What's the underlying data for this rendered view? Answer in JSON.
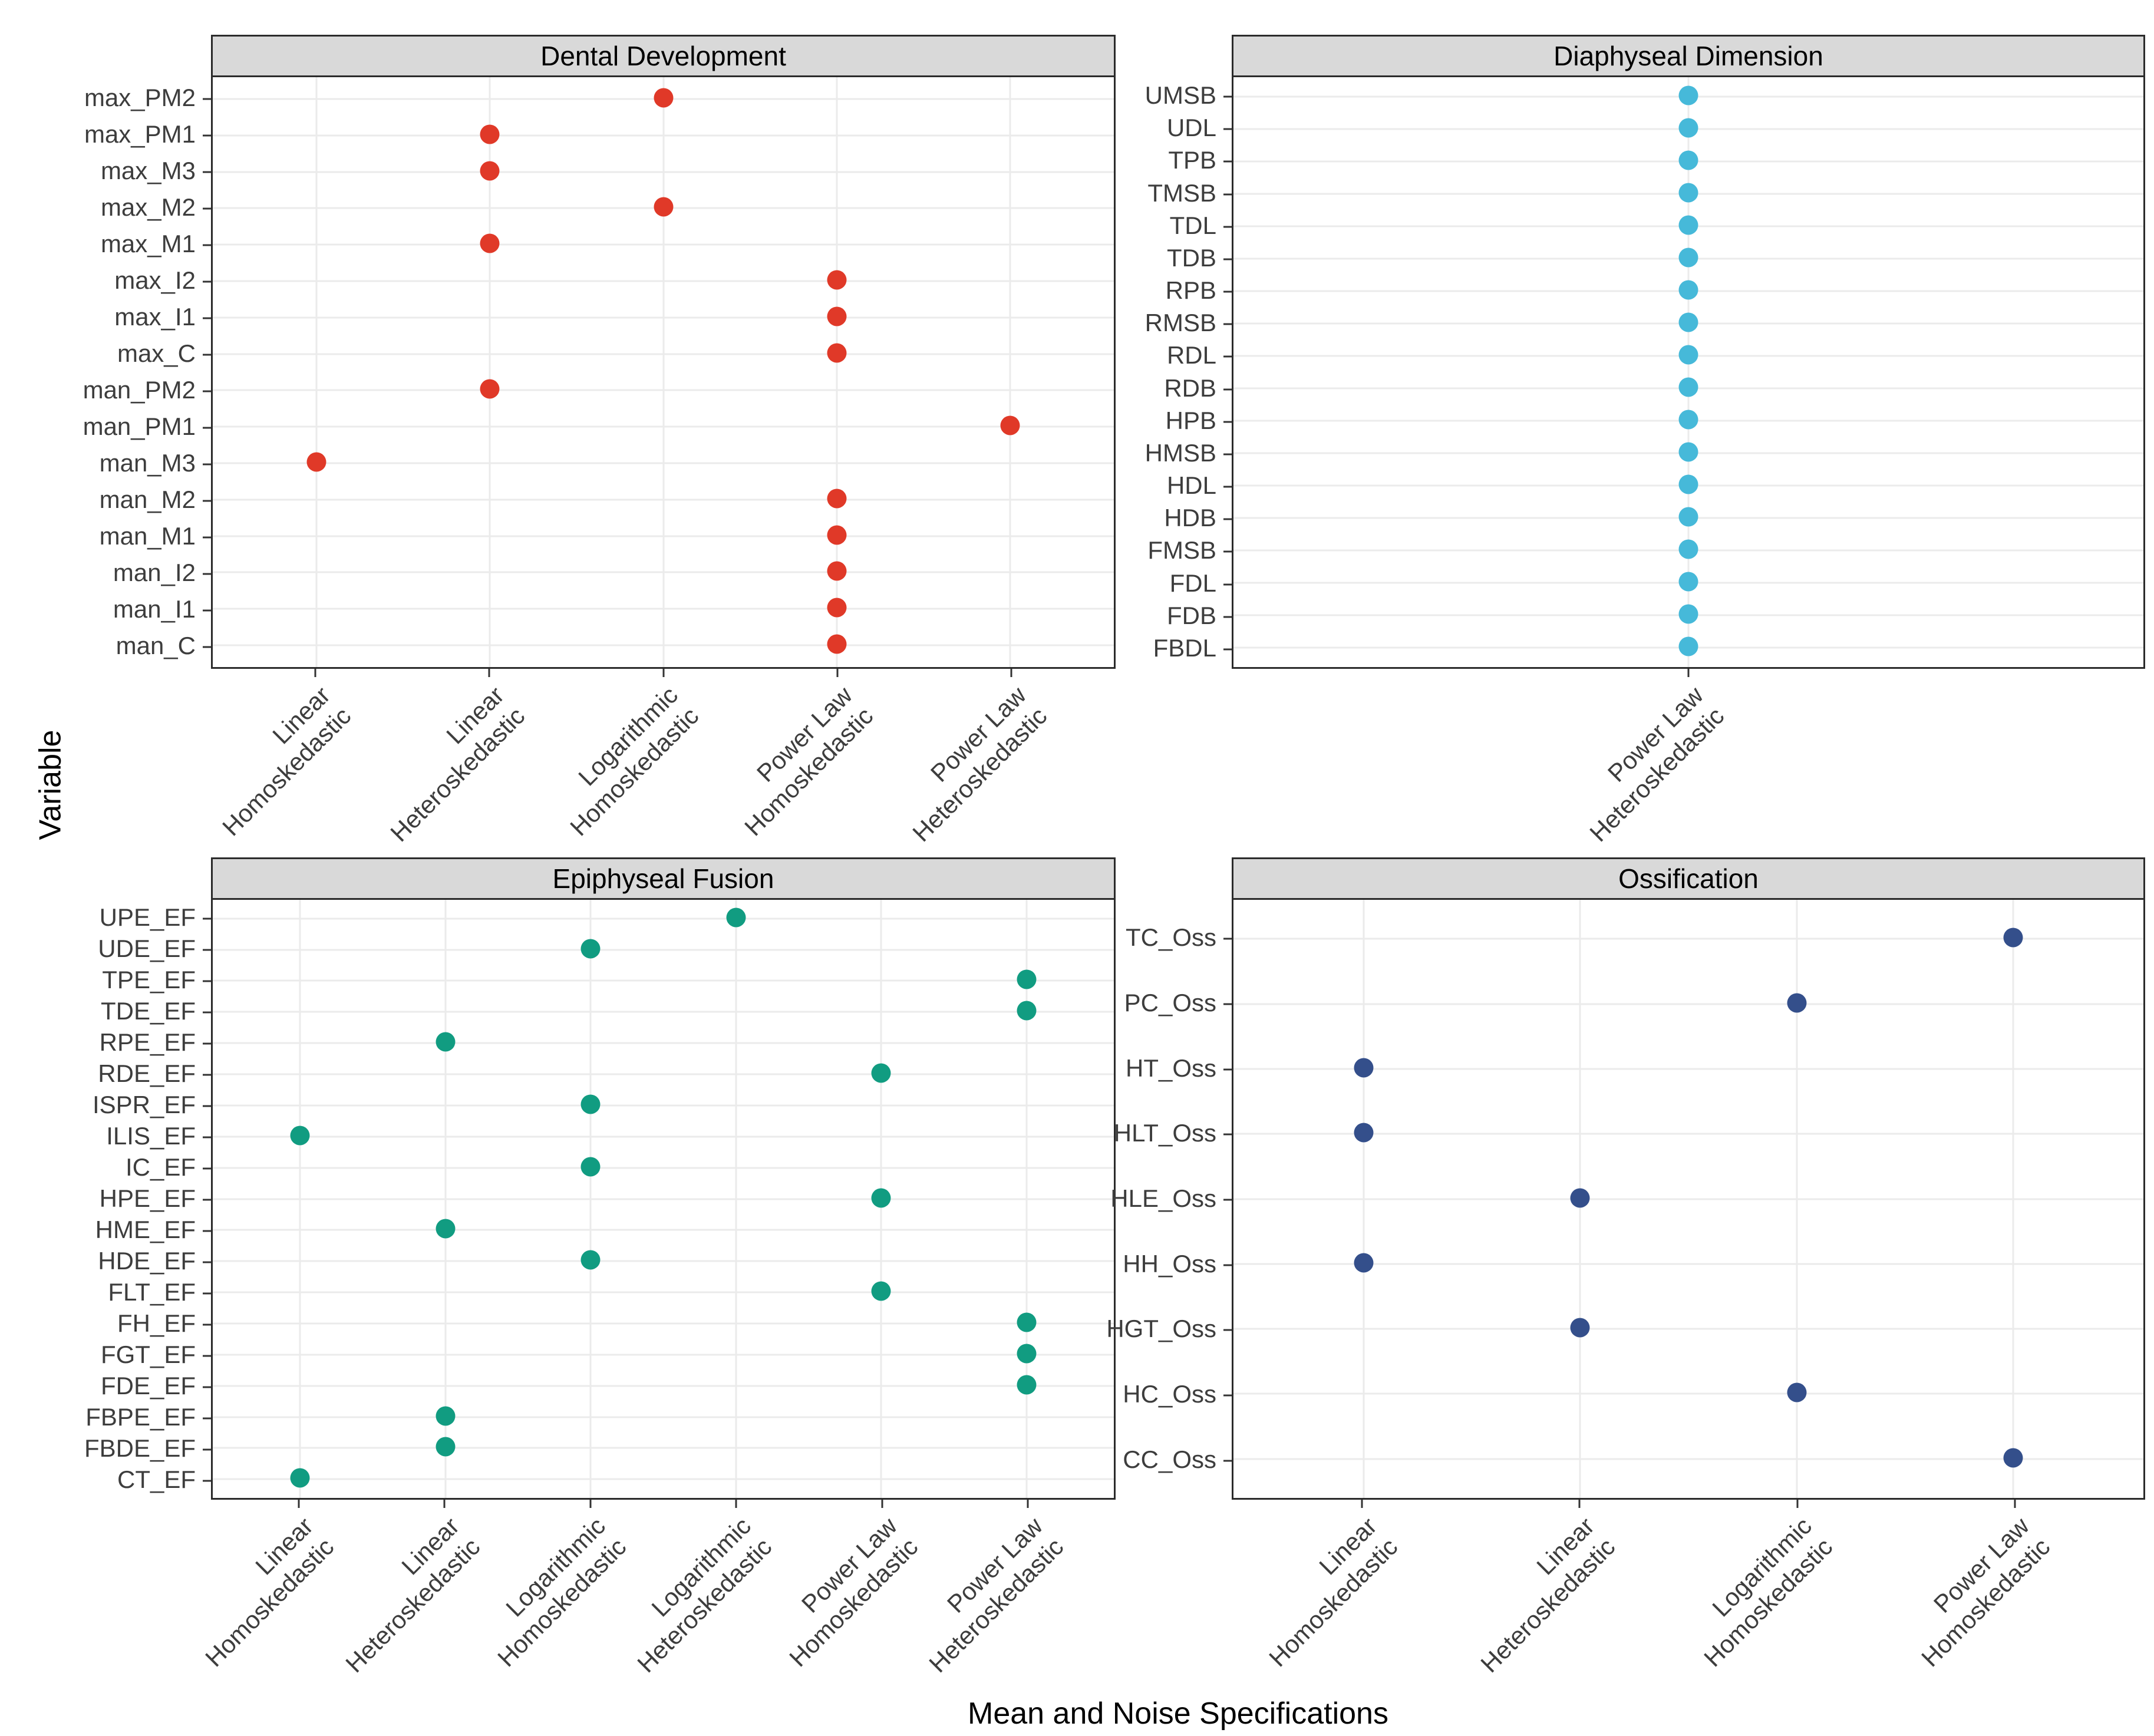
{
  "figure": {
    "y_axis_title": "Variable",
    "x_axis_title": "Mean and Noise Specifications"
  },
  "colors": {
    "dental_red": "#e03928",
    "diaphyseal_blue": "#46b9d9",
    "epiphyseal_teal": "#119c81",
    "ossification_navy": "#344f8b",
    "strip_background": "#d9d9d9",
    "panel_border": "#2b2b2b",
    "gridline": "#ebebeb",
    "tick_label": "#3d3d3d"
  },
  "chart_data": [
    {
      "type": "scatter",
      "title": "Dental Development",
      "dot_color": "#e03928",
      "legend_position": "none",
      "grid": true,
      "x_categories": [
        "Linear Homoskedastic",
        "Linear Heteroskedastic",
        "Logarithmic Homoskedastic",
        "Power Law Homoskedastic",
        "Power Law Heteroskedastic"
      ],
      "y_categories": [
        "max_PM2",
        "max_PM1",
        "max_M3",
        "max_M2",
        "max_M1",
        "max_I2",
        "max_I1",
        "max_C",
        "man_PM2",
        "man_PM1",
        "man_M3",
        "man_M2",
        "man_M1",
        "man_I2",
        "man_I1",
        "man_C"
      ],
      "points": [
        {
          "variable": "max_PM2",
          "specification": "Logarithmic Homoskedastic"
        },
        {
          "variable": "max_PM1",
          "specification": "Linear Heteroskedastic"
        },
        {
          "variable": "max_M3",
          "specification": "Linear Heteroskedastic"
        },
        {
          "variable": "max_M2",
          "specification": "Logarithmic Homoskedastic"
        },
        {
          "variable": "max_M1",
          "specification": "Linear Heteroskedastic"
        },
        {
          "variable": "max_I2",
          "specification": "Power Law Homoskedastic"
        },
        {
          "variable": "max_I1",
          "specification": "Power Law Homoskedastic"
        },
        {
          "variable": "max_C",
          "specification": "Power Law Homoskedastic"
        },
        {
          "variable": "man_PM2",
          "specification": "Linear Heteroskedastic"
        },
        {
          "variable": "man_PM1",
          "specification": "Power Law Heteroskedastic"
        },
        {
          "variable": "man_M3",
          "specification": "Linear Homoskedastic"
        },
        {
          "variable": "man_M2",
          "specification": "Power Law Homoskedastic"
        },
        {
          "variable": "man_M1",
          "specification": "Power Law Homoskedastic"
        },
        {
          "variable": "man_I2",
          "specification": "Power Law Homoskedastic"
        },
        {
          "variable": "man_I1",
          "specification": "Power Law Homoskedastic"
        },
        {
          "variable": "man_C",
          "specification": "Power Law Homoskedastic"
        }
      ]
    },
    {
      "type": "scatter",
      "title": "Diaphyseal Dimension",
      "dot_color": "#46b9d9",
      "legend_position": "none",
      "grid": true,
      "x_categories": [
        "Power Law Heteroskedastic"
      ],
      "y_categories": [
        "UMSB",
        "UDL",
        "TPB",
        "TMSB",
        "TDL",
        "TDB",
        "RPB",
        "RMSB",
        "RDL",
        "RDB",
        "HPB",
        "HMSB",
        "HDL",
        "HDB",
        "FMSB",
        "FDL",
        "FDB",
        "FBDL"
      ],
      "points": [
        {
          "variable": "UMSB",
          "specification": "Power Law Heteroskedastic"
        },
        {
          "variable": "UDL",
          "specification": "Power Law Heteroskedastic"
        },
        {
          "variable": "TPB",
          "specification": "Power Law Heteroskedastic"
        },
        {
          "variable": "TMSB",
          "specification": "Power Law Heteroskedastic"
        },
        {
          "variable": "TDL",
          "specification": "Power Law Heteroskedastic"
        },
        {
          "variable": "TDB",
          "specification": "Power Law Heteroskedastic"
        },
        {
          "variable": "RPB",
          "specification": "Power Law Heteroskedastic"
        },
        {
          "variable": "RMSB",
          "specification": "Power Law Heteroskedastic"
        },
        {
          "variable": "RDL",
          "specification": "Power Law Heteroskedastic"
        },
        {
          "variable": "RDB",
          "specification": "Power Law Heteroskedastic"
        },
        {
          "variable": "HPB",
          "specification": "Power Law Heteroskedastic"
        },
        {
          "variable": "HMSB",
          "specification": "Power Law Heteroskedastic"
        },
        {
          "variable": "HDL",
          "specification": "Power Law Heteroskedastic"
        },
        {
          "variable": "HDB",
          "specification": "Power Law Heteroskedastic"
        },
        {
          "variable": "FMSB",
          "specification": "Power Law Heteroskedastic"
        },
        {
          "variable": "FDL",
          "specification": "Power Law Heteroskedastic"
        },
        {
          "variable": "FDB",
          "specification": "Power Law Heteroskedastic"
        },
        {
          "variable": "FBDL",
          "specification": "Power Law Heteroskedastic"
        }
      ]
    },
    {
      "type": "scatter",
      "title": "Epiphyseal Fusion",
      "dot_color": "#119c81",
      "legend_position": "none",
      "grid": true,
      "x_categories": [
        "Linear Homoskedastic",
        "Linear Heteroskedastic",
        "Logarithmic Homoskedastic",
        "Logarithmic Heteroskedastic",
        "Power Law Homoskedastic",
        "Power Law Heteroskedastic"
      ],
      "y_categories": [
        "UPE_EF",
        "UDE_EF",
        "TPE_EF",
        "TDE_EF",
        "RPE_EF",
        "RDE_EF",
        "ISPR_EF",
        "ILIS_EF",
        "IC_EF",
        "HPE_EF",
        "HME_EF",
        "HDE_EF",
        "FLT_EF",
        "FH_EF",
        "FGT_EF",
        "FDE_EF",
        "FBPE_EF",
        "FBDE_EF",
        "CT_EF"
      ],
      "points": [
        {
          "variable": "UPE_EF",
          "specification": "Logarithmic Heteroskedastic"
        },
        {
          "variable": "UDE_EF",
          "specification": "Logarithmic Homoskedastic"
        },
        {
          "variable": "TPE_EF",
          "specification": "Power Law Heteroskedastic"
        },
        {
          "variable": "TDE_EF",
          "specification": "Power Law Heteroskedastic"
        },
        {
          "variable": "RPE_EF",
          "specification": "Linear Heteroskedastic"
        },
        {
          "variable": "RDE_EF",
          "specification": "Power Law Homoskedastic"
        },
        {
          "variable": "ISPR_EF",
          "specification": "Logarithmic Homoskedastic"
        },
        {
          "variable": "ILIS_EF",
          "specification": "Linear Homoskedastic"
        },
        {
          "variable": "IC_EF",
          "specification": "Logarithmic Homoskedastic"
        },
        {
          "variable": "HPE_EF",
          "specification": "Power Law Homoskedastic"
        },
        {
          "variable": "HME_EF",
          "specification": "Linear Heteroskedastic"
        },
        {
          "variable": "HDE_EF",
          "specification": "Logarithmic Homoskedastic"
        },
        {
          "variable": "FLT_EF",
          "specification": "Power Law Homoskedastic"
        },
        {
          "variable": "FH_EF",
          "specification": "Power Law Heteroskedastic"
        },
        {
          "variable": "FGT_EF",
          "specification": "Power Law Heteroskedastic"
        },
        {
          "variable": "FDE_EF",
          "specification": "Power Law Heteroskedastic"
        },
        {
          "variable": "FBPE_EF",
          "specification": "Linear Heteroskedastic"
        },
        {
          "variable": "FBDE_EF",
          "specification": "Linear Heteroskedastic"
        },
        {
          "variable": "CT_EF",
          "specification": "Linear Homoskedastic"
        }
      ]
    },
    {
      "type": "scatter",
      "title": "Ossification",
      "dot_color": "#344f8b",
      "legend_position": "none",
      "grid": true,
      "x_categories": [
        "Linear Homoskedastic",
        "Linear Heteroskedastic",
        "Logarithmic Homoskedastic",
        "Power Law Homoskedastic"
      ],
      "y_categories": [
        "TC_Oss",
        "PC_Oss",
        "HT_Oss",
        "HLT_Oss",
        "HLE_Oss",
        "HH_Oss",
        "HGT_Oss",
        "HC_Oss",
        "CC_Oss"
      ],
      "points": [
        {
          "variable": "TC_Oss",
          "specification": "Power Law Homoskedastic"
        },
        {
          "variable": "PC_Oss",
          "specification": "Logarithmic Homoskedastic"
        },
        {
          "variable": "HT_Oss",
          "specification": "Linear Homoskedastic"
        },
        {
          "variable": "HLT_Oss",
          "specification": "Linear Homoskedastic"
        },
        {
          "variable": "HLE_Oss",
          "specification": "Linear Heteroskedastic"
        },
        {
          "variable": "HH_Oss",
          "specification": "Linear Homoskedastic"
        },
        {
          "variable": "HGT_Oss",
          "specification": "Linear Heteroskedastic"
        },
        {
          "variable": "HC_Oss",
          "specification": "Logarithmic Homoskedastic"
        },
        {
          "variable": "CC_Oss",
          "specification": "Power Law Homoskedastic"
        }
      ]
    }
  ]
}
